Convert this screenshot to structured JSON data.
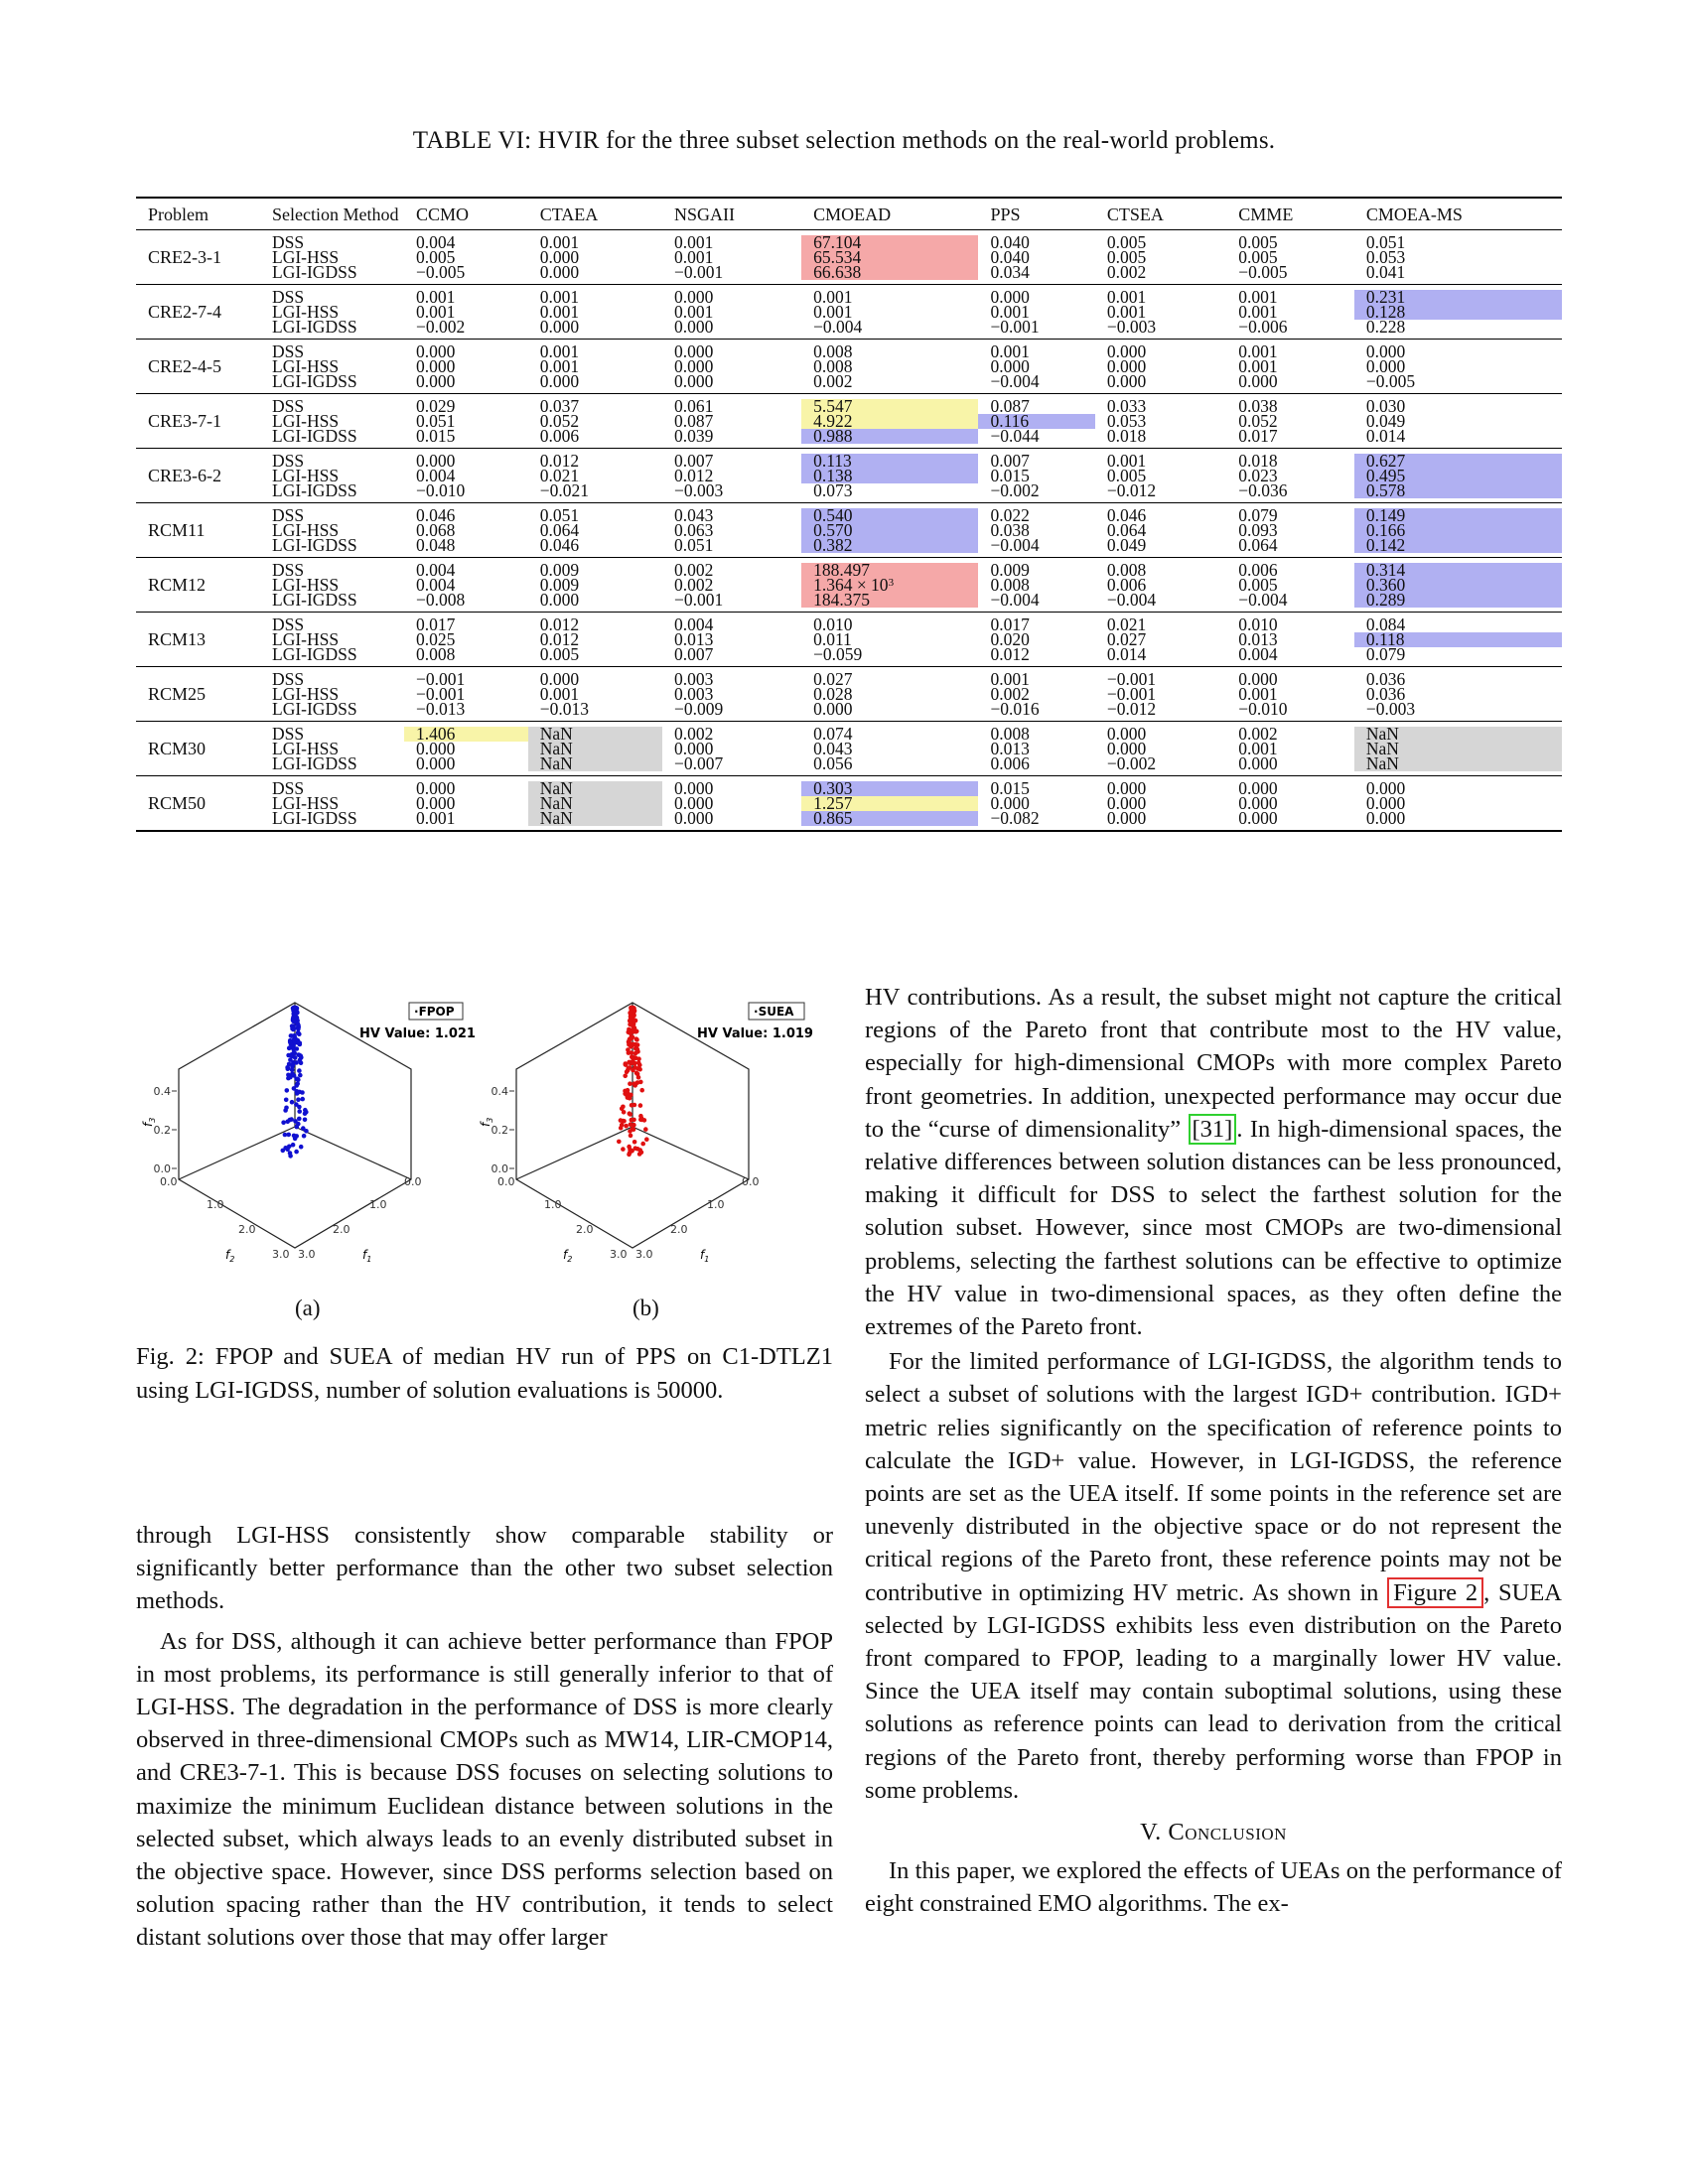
{
  "table_caption": "TABLE VI: HVIR for the three subset selection methods on the real-world problems.",
  "table": {
    "headers": [
      "Problem",
      "Selection Method",
      "CCMO",
      "CTAEA",
      "NSGAII",
      "CMOEAD",
      "PPS",
      "CTSEA",
      "CMME",
      "CMOEA-MS"
    ],
    "methods": [
      "DSS",
      "LGI-HSS",
      "LGI-IGDSS"
    ],
    "rows": [
      {
        "problem": "CRE2-3-1",
        "values": [
          [
            "0.004",
            "0.005",
            "−0.005"
          ],
          [
            "0.001",
            "0.000",
            "0.000"
          ],
          [
            "0.001",
            "0.001",
            "−0.001"
          ],
          [
            "67.104",
            "65.534",
            "66.638"
          ],
          [
            "0.040",
            "0.040",
            "0.034"
          ],
          [
            "0.005",
            "0.005",
            "0.002"
          ],
          [
            "0.005",
            "0.005",
            "−0.005"
          ],
          [
            "0.051",
            "0.053",
            "0.041"
          ]
        ]
      },
      {
        "problem": "CRE2-7-4",
        "values": [
          [
            "0.001",
            "0.001",
            "−0.002"
          ],
          [
            "0.001",
            "0.001",
            "0.000"
          ],
          [
            "0.000",
            "0.001",
            "0.000"
          ],
          [
            "0.001",
            "0.001",
            "−0.004"
          ],
          [
            "0.000",
            "0.001",
            "−0.001"
          ],
          [
            "0.001",
            "0.001",
            "−0.003"
          ],
          [
            "0.001",
            "0.001",
            "−0.006"
          ],
          [
            "0.231",
            "0.128",
            "0.228"
          ]
        ]
      },
      {
        "problem": "CRE2-4-5",
        "values": [
          [
            "0.000",
            "0.000",
            "0.000"
          ],
          [
            "0.001",
            "0.001",
            "0.000"
          ],
          [
            "0.000",
            "0.000",
            "0.000"
          ],
          [
            "0.008",
            "0.008",
            "0.002"
          ],
          [
            "0.001",
            "0.000",
            "−0.004"
          ],
          [
            "0.000",
            "0.000",
            "0.000"
          ],
          [
            "0.001",
            "0.001",
            "0.000"
          ],
          [
            "0.000",
            "0.000",
            "−0.005"
          ]
        ]
      },
      {
        "problem": "CRE3-7-1",
        "values": [
          [
            "0.029",
            "0.051",
            "0.015"
          ],
          [
            "0.037",
            "0.052",
            "0.006"
          ],
          [
            "0.061",
            "0.087",
            "0.039"
          ],
          [
            "5.547",
            "4.922",
            "0.988"
          ],
          [
            "0.087",
            "0.116",
            "−0.044"
          ],
          [
            "0.033",
            "0.053",
            "0.018"
          ],
          [
            "0.038",
            "0.052",
            "0.017"
          ],
          [
            "0.030",
            "0.049",
            "0.014"
          ]
        ]
      },
      {
        "problem": "CRE3-6-2",
        "values": [
          [
            "0.000",
            "0.004",
            "−0.010"
          ],
          [
            "0.012",
            "0.021",
            "−0.021"
          ],
          [
            "0.007",
            "0.012",
            "−0.003"
          ],
          [
            "0.113",
            "0.138",
            "0.073"
          ],
          [
            "0.007",
            "0.015",
            "−0.002"
          ],
          [
            "0.001",
            "0.005",
            "−0.012"
          ],
          [
            "0.018",
            "0.023",
            "−0.036"
          ],
          [
            "0.627",
            "0.495",
            "0.578"
          ]
        ]
      },
      {
        "problem": "RCM11",
        "values": [
          [
            "0.046",
            "0.068",
            "0.048"
          ],
          [
            "0.051",
            "0.064",
            "0.046"
          ],
          [
            "0.043",
            "0.063",
            "0.051"
          ],
          [
            "0.540",
            "0.570",
            "0.382"
          ],
          [
            "0.022",
            "0.038",
            "−0.004"
          ],
          [
            "0.046",
            "0.064",
            "0.049"
          ],
          [
            "0.079",
            "0.093",
            "0.064"
          ],
          [
            "0.149",
            "0.166",
            "0.142"
          ]
        ]
      },
      {
        "problem": "RCM12",
        "values": [
          [
            "0.004",
            "0.004",
            "−0.008"
          ],
          [
            "0.009",
            "0.009",
            "0.000"
          ],
          [
            "0.002",
            "0.002",
            "−0.001"
          ],
          [
            "188.497",
            "1.364 × 10",
            "184.375"
          ],
          [
            "0.009",
            "0.008",
            "−0.004"
          ],
          [
            "0.008",
            "0.006",
            "−0.004"
          ],
          [
            "0.006",
            "0.005",
            "−0.004"
          ],
          [
            "0.314",
            "0.360",
            "0.289"
          ]
        ]
      },
      {
        "problem": "RCM13",
        "values": [
          [
            "0.017",
            "0.025",
            "0.008"
          ],
          [
            "0.012",
            "0.012",
            "0.005"
          ],
          [
            "0.004",
            "0.013",
            "0.007"
          ],
          [
            "0.010",
            "0.011",
            "−0.059"
          ],
          [
            "0.017",
            "0.020",
            "0.012"
          ],
          [
            "0.021",
            "0.027",
            "0.014"
          ],
          [
            "0.010",
            "0.013",
            "0.004"
          ],
          [
            "0.084",
            "0.118",
            "0.079"
          ]
        ]
      },
      {
        "problem": "RCM25",
        "values": [
          [
            "−0.001",
            "−0.001",
            "−0.013"
          ],
          [
            "0.000",
            "0.001",
            "−0.013"
          ],
          [
            "0.003",
            "0.003",
            "−0.009"
          ],
          [
            "0.027",
            "0.028",
            "0.000"
          ],
          [
            "0.001",
            "0.002",
            "−0.016"
          ],
          [
            "−0.001",
            "−0.001",
            "−0.012"
          ],
          [
            "0.000",
            "0.001",
            "−0.010"
          ],
          [
            "0.036",
            "0.036",
            "−0.003"
          ]
        ]
      },
      {
        "problem": "RCM30",
        "values": [
          [
            "1.406",
            "0.000",
            "0.000"
          ],
          [
            "NaN",
            "NaN",
            "NaN"
          ],
          [
            "0.002",
            "0.000",
            "−0.007"
          ],
          [
            "0.074",
            "0.043",
            "0.056"
          ],
          [
            "0.008",
            "0.013",
            "0.006"
          ],
          [
            "0.000",
            "0.000",
            "−0.002"
          ],
          [
            "0.002",
            "0.001",
            "0.000"
          ],
          [
            "NaN",
            "NaN",
            "NaN"
          ]
        ]
      },
      {
        "problem": "RCM50",
        "values": [
          [
            "0.000",
            "0.000",
            "0.001"
          ],
          [
            "NaN",
            "NaN",
            "NaN"
          ],
          [
            "0.000",
            "0.000",
            "0.000"
          ],
          [
            "0.303",
            "1.257",
            "0.865"
          ],
          [
            "0.015",
            "0.000",
            "−0.082"
          ],
          [
            "0.000",
            "0.000",
            "0.000"
          ],
          [
            "0.000",
            "0.000",
            "0.000"
          ],
          [
            "0.000",
            "0.000",
            "0.000"
          ]
        ]
      }
    ],
    "exponent": "3",
    "highlight_colors": {
      "red": "#f5a8a8",
      "yellow": "#f8f4a8",
      "blue": "#b0b0f2",
      "gray": "#d6d6d6"
    }
  },
  "figure": {
    "panel_a": {
      "legend": "FPOP",
      "hv_label": "HV Value: 1.021",
      "sublabel": "(a)",
      "color": "#1010d0"
    },
    "panel_b": {
      "legend": "SUEA",
      "hv_label": "HV Value: 1.019",
      "sublabel": "(b)",
      "color": "#e01010"
    },
    "z_ticks": [
      "0.0",
      "0.2",
      "0.4"
    ],
    "f2_ticks": [
      "0.0",
      "1.0",
      "2.0",
      "3.0"
    ],
    "f1_ticks": [
      "0.0",
      "1.0",
      "2.0",
      "3.0"
    ],
    "f3_label": "f",
    "f3_sub": "3",
    "f2_label": "f",
    "f2_sub": "2",
    "f1_label": "f",
    "f1_sub": "1",
    "caption": "Fig. 2: FPOP and SUEA of median HV run of PPS on C1-DTLZ1 using LGI-IGDSS, number of solution evaluations is 50000."
  },
  "text": {
    "left_p1": "through LGI-HSS consistently show comparable stability or significantly better performance than the other two subset selection methods.",
    "left_p2": "As for DSS, although it can achieve better performance than FPOP in most problems, its performance is still generally inferior to that of LGI-HSS. The degradation in the performance of DSS is more clearly observed in three-dimensional CMOPs such as MW14, LIR-CMOP14, and CRE3-7-1. This is because DSS focuses on selecting solutions to maximize the minimum Euclidean distance between solutions in the selected subset, which always leads to an evenly distributed subset in the objective space. However, since DSS performs selection based on solution spacing rather than the HV contribution, it tends to select distant solutions over those that may offer larger",
    "right_p1_a": "HV contributions. As a result, the subset might not capture the critical regions of the Pareto front that contribute most to the HV value, especially for high-dimensional CMOPs with more complex Pareto front geometries. In addition, unexpected performance may occur due to the “curse of dimensionality” ",
    "right_p1_ref": "[31]",
    "right_p1_b": ". In high-dimensional spaces, the relative differences between solution distances can be less pronounced, making it difficult for DSS to select the farthest solution for the solution subset. However, since most CMOPs are two-dimensional problems, selecting the farthest solutions can be effective to optimize the HV value in two-dimensional spaces, as they often define the extremes of the Pareto front.",
    "right_p2_a": "For the limited performance of LGI-IGDSS, the algorithm tends to select a subset of solutions with the largest IGD+ contribution. IGD+ metric relies significantly on the specification of reference points to calculate the IGD+ value. However, in LGI-IGDSS, the reference points are set as the UEA itself. If some points in the reference set are unevenly distributed in the objective space or do not represent the critical regions of the Pareto front, these reference points may not be contributive in optimizing HV metric. As shown in ",
    "right_p2_ref": "Figure 2",
    "right_p2_b": ", SUEA selected by LGI-IGDSS exhibits less even distribution on the Pareto front compared to FPOP, leading to a marginally lower HV value. Since the UEA itself may contain suboptimal solutions, using these solutions as reference points can lead to derivation from the critical regions of the Pareto front, thereby performing worse than FPOP in some problems.",
    "section_num": "V. ",
    "section_name": "Conclusion",
    "right_p3": "In this paper, we explored the effects of UEAs on the performance of eight constrained EMO algorithms. The ex-"
  }
}
